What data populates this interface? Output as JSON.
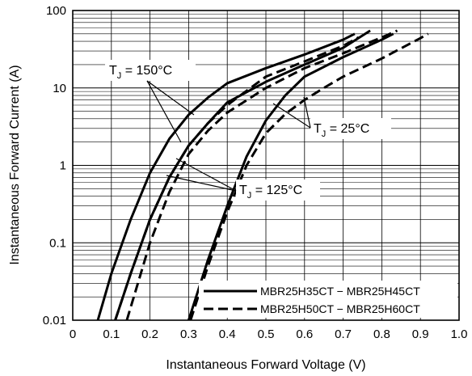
{
  "chart_data": {
    "type": "line",
    "title": "",
    "xlabel": "Instantaneous Forward Voltage (V)",
    "ylabel": "Instantaneous Forward Current (A)",
    "xscale": "linear",
    "yscale": "log",
    "xlim": [
      0,
      1.0
    ],
    "ylim": [
      0.01,
      100
    ],
    "x_ticks": [
      "0",
      "0.1",
      "0.2",
      "0.3",
      "0.4",
      "0.5",
      "0.6",
      "0.7",
      "0.8",
      "0.9",
      "1.0"
    ],
    "y_ticks": [
      "0.01",
      "0.1",
      "1",
      "10",
      "100"
    ],
    "grid": true,
    "legend": {
      "position": "bottom-right",
      "entries": [
        {
          "label": "MBR25H35CT − MBR25H45CT",
          "style": "solid"
        },
        {
          "label": "MBR25H50CT − MBR25H60CT",
          "style": "dashed"
        }
      ]
    },
    "annotations": [
      {
        "prefix": "T",
        "sub": "J",
        "text": " = 150°C"
      },
      {
        "prefix": "T",
        "sub": "J",
        "text": " = 25°C"
      },
      {
        "prefix": "T",
        "sub": "J",
        "text": " = 125°C"
      }
    ],
    "series": [
      {
        "style": "solid",
        "group": "150°C",
        "x": [
          0.065,
          0.1,
          0.15,
          0.2,
          0.25,
          0.3,
          0.35,
          0.4,
          0.5,
          0.6,
          0.7,
          0.73
        ],
        "y": [
          0.01,
          0.04,
          0.2,
          0.8,
          2.2,
          4.5,
          7.5,
          11.5,
          18,
          27,
          42,
          50
        ]
      },
      {
        "style": "solid",
        "group": "125°C",
        "x": [
          0.11,
          0.15,
          0.2,
          0.25,
          0.3,
          0.35,
          0.4,
          0.5,
          0.6,
          0.7,
          0.77
        ],
        "y": [
          0.01,
          0.04,
          0.2,
          0.7,
          1.8,
          3.5,
          6.5,
          12,
          20,
          33,
          55
        ]
      },
      {
        "style": "solid",
        "group": "25°C",
        "x": [
          0.3,
          0.35,
          0.4,
          0.45,
          0.5,
          0.55,
          0.6,
          0.7,
          0.8,
          0.83
        ],
        "y": [
          0.01,
          0.06,
          0.3,
          1.3,
          3.8,
          8,
          14,
          25,
          42,
          50
        ]
      },
      {
        "style": "dashed",
        "group": "150°C",
        "x": [
          0.11,
          0.15,
          0.2,
          0.25,
          0.3,
          0.35,
          0.4,
          0.5,
          0.6,
          0.7,
          0.74
        ],
        "y": [
          0.01,
          0.04,
          0.2,
          0.7,
          1.8,
          3.5,
          6,
          14,
          22,
          35,
          45
        ]
      },
      {
        "style": "dashed",
        "group": "125°C",
        "x": [
          0.14,
          0.2,
          0.25,
          0.3,
          0.35,
          0.4,
          0.5,
          0.6,
          0.7,
          0.8,
          0.84
        ],
        "y": [
          0.01,
          0.1,
          0.45,
          1.4,
          2.8,
          4.8,
          10,
          18,
          28,
          45,
          55
        ]
      },
      {
        "style": "dashed",
        "group": "25°C",
        "x": [
          0.305,
          0.35,
          0.4,
          0.45,
          0.5,
          0.55,
          0.6,
          0.65,
          0.7,
          0.8,
          0.9,
          0.92
        ],
        "y": [
          0.01,
          0.05,
          0.25,
          1.0,
          2.6,
          4.6,
          7,
          10,
          14,
          24,
          44,
          50
        ]
      }
    ]
  }
}
